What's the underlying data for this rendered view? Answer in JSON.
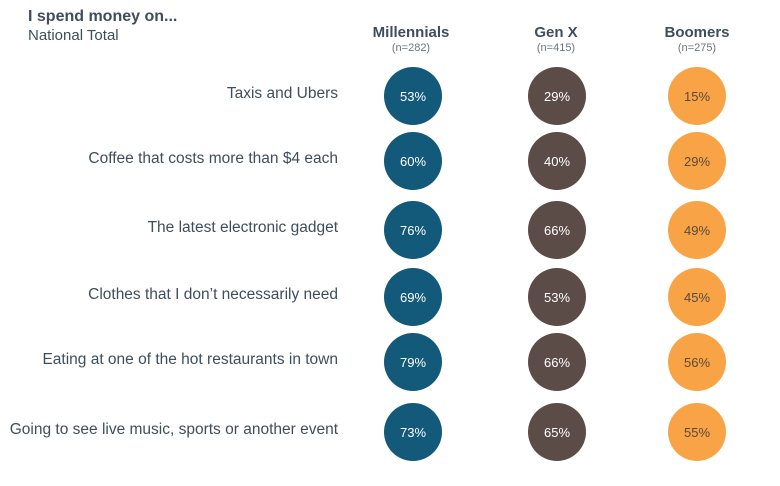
{
  "title": "I spend money on...",
  "subtitle": "National Total",
  "columns": [
    {
      "name": "Millennials",
      "n": "(n=282)",
      "color": "#12597a"
    },
    {
      "name": "Gen X",
      "n": "(n=415)",
      "color": "#5c4c48"
    },
    {
      "name": "Boomers",
      "n": "(n=275)",
      "color": "#f8a446"
    }
  ],
  "chart_data": {
    "type": "table",
    "title": "I spend money on...",
    "subtitle": "National Total",
    "series": [
      {
        "name": "Millennials",
        "values": [
          53,
          60,
          76,
          69,
          79,
          73
        ]
      },
      {
        "name": "Gen X",
        "values": [
          29,
          40,
          66,
          53,
          66,
          65
        ]
      },
      {
        "name": "Boomers",
        "values": [
          15,
          29,
          49,
          45,
          56,
          55
        ]
      }
    ],
    "categories": [
      "Taxis and Ubers",
      "Coffee that costs more than $4 each",
      "The latest electronic gadget",
      "Clothes that I don’t necessarily need",
      "Eating at one of the hot restaurants in town",
      "Going to see live music, sports or another event"
    ],
    "value_labels": [
      [
        "53%",
        "29%",
        "15%"
      ],
      [
        "60%",
        "40%",
        "29%"
      ],
      [
        "76%",
        "66%",
        "49%"
      ],
      [
        "69%",
        "53%",
        "45%"
      ],
      [
        "79%",
        "66%",
        "56%"
      ],
      [
        "73%",
        "65%",
        "55%"
      ]
    ]
  }
}
